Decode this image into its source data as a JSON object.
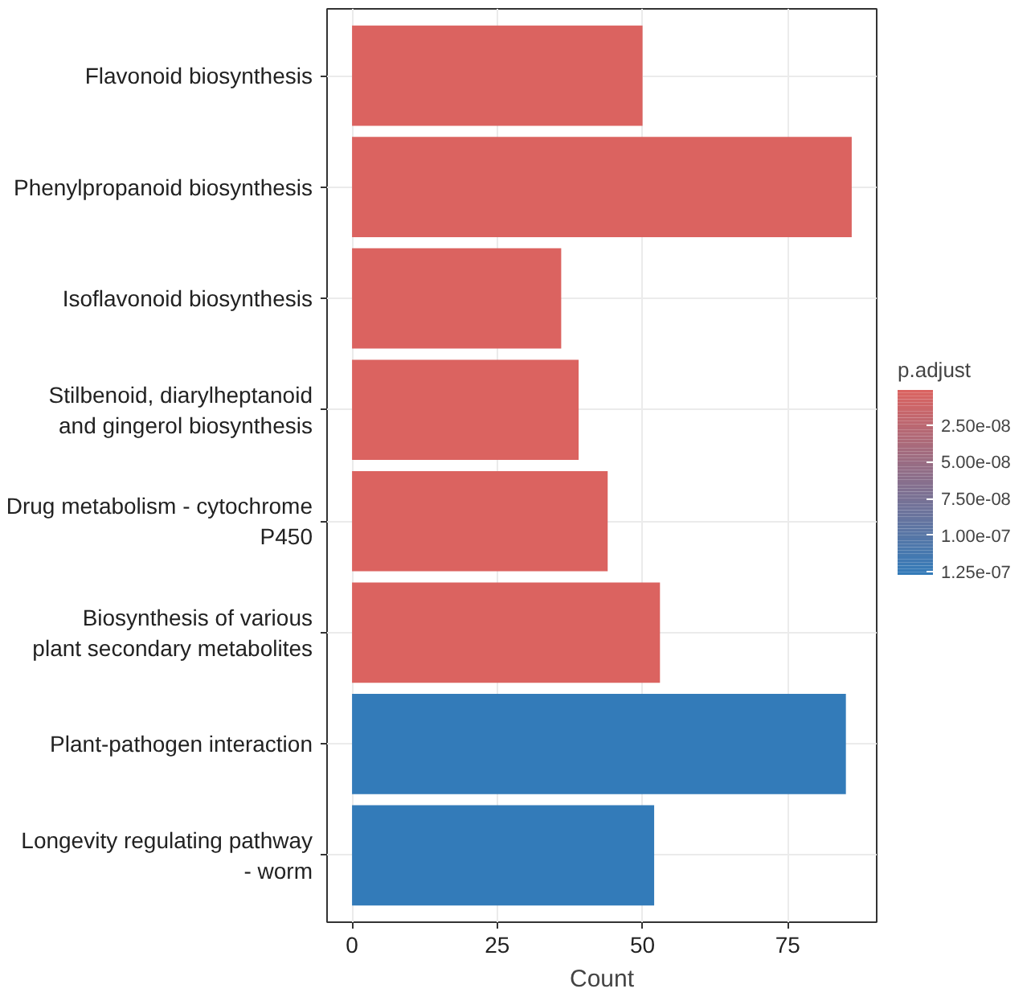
{
  "chart_data": {
    "type": "bar",
    "orientation": "horizontal",
    "xlabel": "Count",
    "clabel": "p.adjust",
    "categories": [
      "Flavonoid biosynthesis",
      "Phenylpropanoid biosynthesis",
      "Isoflavonoid biosynthesis",
      "Stilbenoid, diarylheptanoid\nand gingerol biosynthesis",
      "Drug metabolism - cytochrome\nP450",
      "Biosynthesis of various\nplant secondary metabolites",
      "Plant-pathogen interaction",
      "Longevity regulating pathway\n- worm"
    ],
    "values": [
      50,
      86,
      36,
      39,
      44,
      53,
      85,
      52
    ],
    "colors": [
      "#db6360",
      "#db6360",
      "#db6360",
      "#db6360",
      "#db6360",
      "#db6360",
      "#337bb9",
      "#337bb9"
    ],
    "xlim": [
      -4.3,
      90.3
    ],
    "xticks": [
      0,
      25,
      50,
      75
    ],
    "clim": [
      1e-09,
      1.27e-07
    ],
    "cticks": [
      {
        "value": 2.5e-08,
        "label": "2.50e-08"
      },
      {
        "value": 5e-08,
        "label": "5.00e-08"
      },
      {
        "value": 7.5e-08,
        "label": "7.50e-08"
      },
      {
        "value": 1e-07,
        "label": "1.00e-07"
      },
      {
        "value": 1.25e-07,
        "label": "1.25e-07"
      }
    ],
    "grid": true
  }
}
